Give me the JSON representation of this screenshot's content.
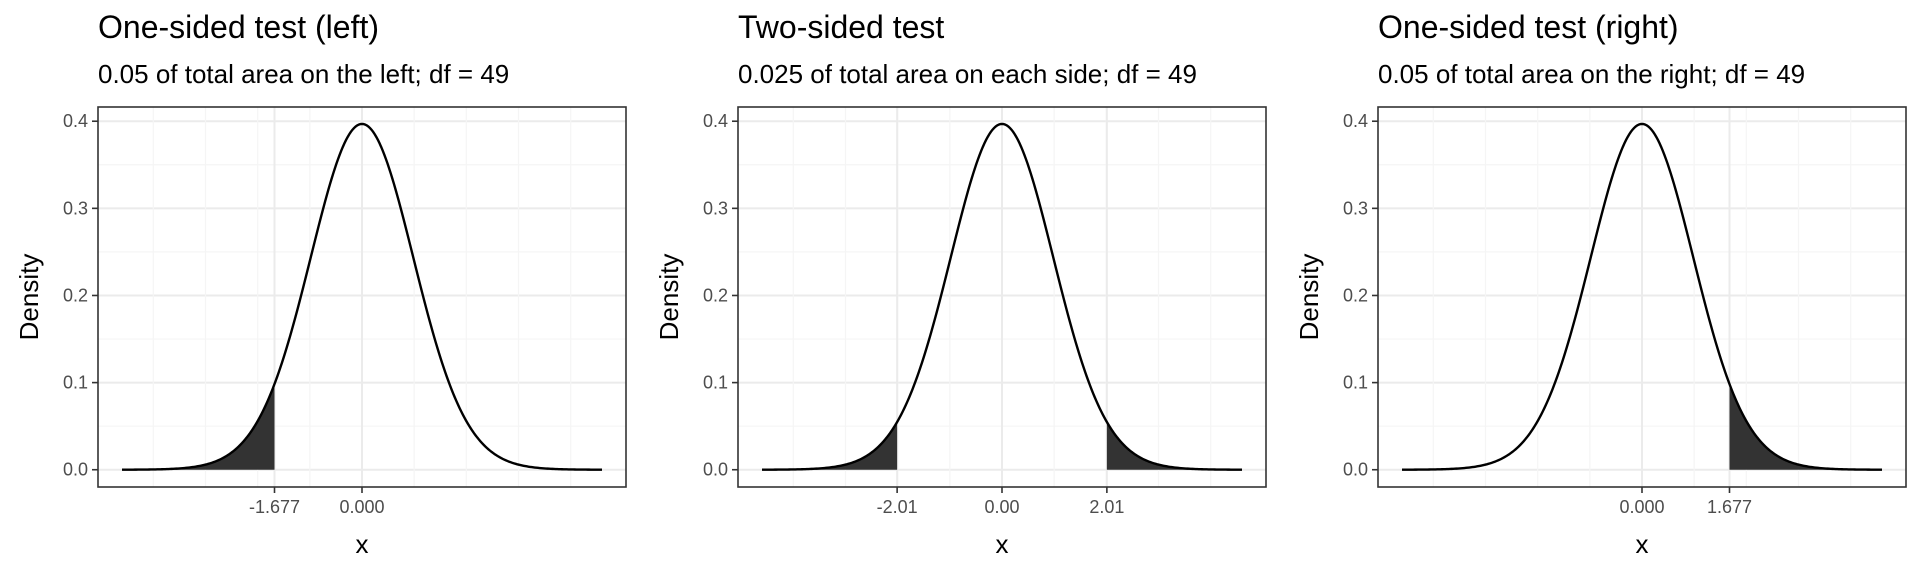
{
  "chart_data": [
    {
      "type": "area",
      "title": "One-sided test (left)",
      "subtitle": "0.05 of total area on the left; df = 49",
      "xlabel": "x",
      "ylabel": "Density",
      "df": 49,
      "xlim": [
        -4.6,
        4.6
      ],
      "ylim": [
        0,
        0.4
      ],
      "yticks": [
        "0.0",
        "0.1",
        "0.2",
        "0.3",
        "0.4"
      ],
      "xticks": [
        {
          "value": -1.677,
          "label": "-1.677"
        },
        {
          "value": 0,
          "label": "0.000"
        }
      ],
      "shaded_regions": [
        [
          -4.6,
          -1.677
        ]
      ],
      "curve": "Student t density, df = 49",
      "grid": true,
      "legend": "none"
    },
    {
      "type": "area",
      "title": "Two-sided test",
      "subtitle": "0.025 of total area on each side; df = 49",
      "xlabel": "x",
      "ylabel": "Density",
      "df": 49,
      "xlim": [
        -4.6,
        4.6
      ],
      "ylim": [
        0,
        0.4
      ],
      "yticks": [
        "0.0",
        "0.1",
        "0.2",
        "0.3",
        "0.4"
      ],
      "xticks": [
        {
          "value": -2.01,
          "label": "-2.01"
        },
        {
          "value": 0,
          "label": "0.00"
        },
        {
          "value": 2.01,
          "label": "2.01"
        }
      ],
      "shaded_regions": [
        [
          -4.6,
          -2.01
        ],
        [
          2.01,
          4.6
        ]
      ],
      "curve": "Student t density, df = 49",
      "grid": true,
      "legend": "none"
    },
    {
      "type": "area",
      "title": "One-sided test (right)",
      "subtitle": "0.05 of total area on the right; df = 49",
      "xlabel": "x",
      "ylabel": "Density",
      "df": 49,
      "xlim": [
        -4.6,
        4.6
      ],
      "ylim": [
        0,
        0.4
      ],
      "yticks": [
        "0.0",
        "0.1",
        "0.2",
        "0.3",
        "0.4"
      ],
      "xticks": [
        {
          "value": 0,
          "label": "0.000"
        },
        {
          "value": 1.677,
          "label": "1.677"
        }
      ],
      "shaded_regions": [
        [
          1.677,
          4.6
        ]
      ],
      "curve": "Student t density, df = 49",
      "grid": true,
      "legend": "none"
    }
  ],
  "colors": {
    "curve": "#000000",
    "fill": "#333333",
    "panel_border": "#333333",
    "grid_major": "#ebebeb",
    "grid_minor": "#f5f5f5",
    "tick_text": "#4d4d4d"
  }
}
